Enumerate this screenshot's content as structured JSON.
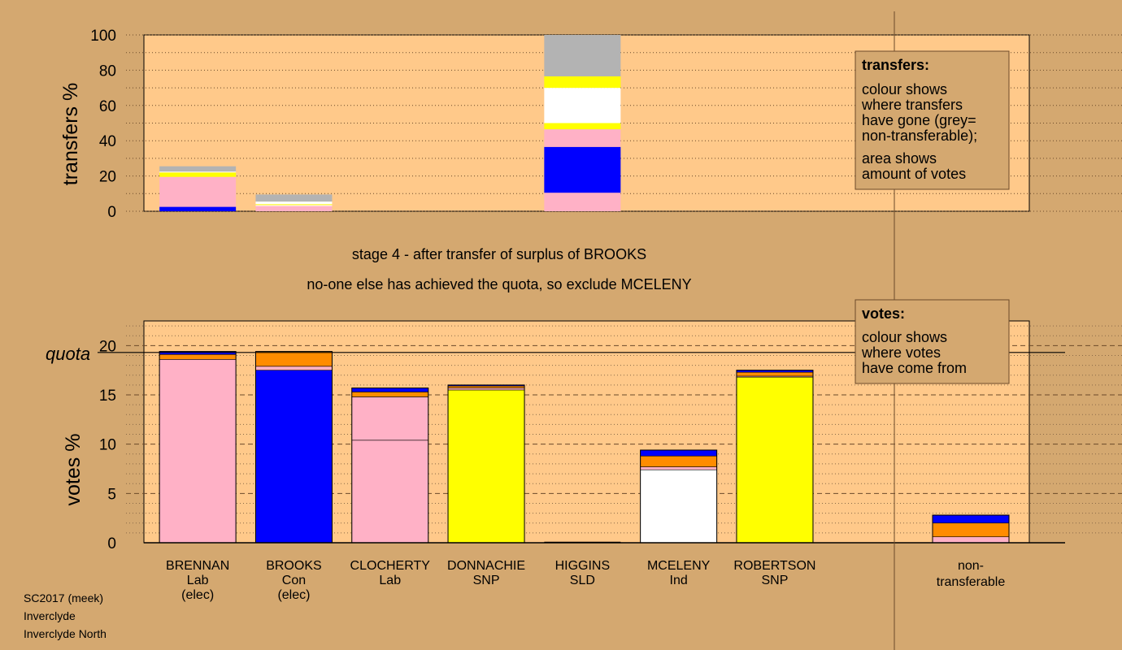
{
  "colors": {
    "background": "#d4a870",
    "plot_bg": "#ffc98a",
    "Lab": "#ffb1c6",
    "Con": "#0000ff",
    "SNP": "#ffff00",
    "Ind": "#ffffff",
    "SLD": "#ff8c00",
    "transfer_from_Con": "#ff8c00",
    "non_transferable": "#b3b3b3"
  },
  "header": {
    "stage_text": "stage 4 - after transfer of surplus of BROOKS",
    "action_text": "no-one else has achieved the quota, so exclude MCELENY"
  },
  "footer": {
    "line1": "SC2017 (meek)",
    "line2": "Inverclyde",
    "line3": "Inverclyde North"
  },
  "legend_transfers": {
    "title": "transfers:",
    "lines": [
      "colour shows",
      "where transfers",
      "have gone (grey=",
      "non-transferable);"
    ],
    "lines2": [
      "area shows",
      "amount of votes"
    ]
  },
  "legend_votes": {
    "title": "votes:",
    "lines": [
      "colour shows",
      "where votes",
      "have come from"
    ]
  },
  "chart_data": [
    {
      "type": "bar",
      "stacked": true,
      "ylabel": "transfers %",
      "ylim": [
        0,
        100
      ],
      "yticks": [
        0,
        20,
        40,
        60,
        80,
        100
      ],
      "grid": "dotted horizontal",
      "categories": [
        "BRENNAN",
        "BROOKS",
        "CLOCHERTY",
        "DONNACHIE",
        "HIGGINS",
        "MCELENY",
        "ROBERTSON"
      ],
      "bars": [
        {
          "candidate": "BRENNAN",
          "segments": [
            {
              "color": "Con",
              "value": 2.5
            },
            {
              "color": "Lab",
              "value": 17
            },
            {
              "color": "SNP",
              "value": 2.5
            },
            {
              "color": "Ind",
              "value": 0.5
            },
            {
              "color": "non_transferable",
              "value": 3
            }
          ]
        },
        {
          "candidate": "BROOKS",
          "segments": [
            {
              "color": "Lab",
              "value": 3
            },
            {
              "color": "Ind",
              "value": 0.5
            },
            {
              "color": "SNP",
              "value": 0.5
            },
            {
              "color": "Ind",
              "value": 1.5
            },
            {
              "color": "non_transferable",
              "value": 4
            }
          ]
        },
        {
          "candidate": "CLOCHERTY",
          "segments": []
        },
        {
          "candidate": "DONNACHIE",
          "segments": []
        },
        {
          "candidate": "HIGGINS",
          "segments": [
            {
              "color": "Lab",
              "value": 10.5
            },
            {
              "color": "Con",
              "value": 26
            },
            {
              "color": "Lab",
              "value": 10
            },
            {
              "color": "SNP",
              "value": 3.5
            },
            {
              "color": "Ind",
              "value": 20
            },
            {
              "color": "SNP",
              "value": 6.5
            },
            {
              "color": "non_transferable",
              "value": 23.5
            }
          ]
        },
        {
          "candidate": "MCELENY",
          "segments": []
        },
        {
          "candidate": "ROBERTSON",
          "segments": []
        }
      ]
    },
    {
      "type": "bar",
      "stacked": true,
      "ylabel": "votes %",
      "ylim": [
        0,
        22.5
      ],
      "yticks": [
        0,
        5,
        10,
        15,
        20
      ],
      "quota": 19.3,
      "quota_label": "quota",
      "categories": [
        {
          "name": "BRENNAN",
          "party": "Lab",
          "note": "(elec)"
        },
        {
          "name": "BROOKS",
          "party": "Con",
          "note": "(elec)"
        },
        {
          "name": "CLOCHERTY",
          "party": "Lab",
          "note": ""
        },
        {
          "name": "DONNACHIE",
          "party": "SNP",
          "note": ""
        },
        {
          "name": "HIGGINS",
          "party": "SLD",
          "note": ""
        },
        {
          "name": "MCELENY",
          "party": "Ind",
          "note": ""
        },
        {
          "name": "ROBERTSON",
          "party": "SNP",
          "note": ""
        }
      ],
      "non_transferable_label": [
        "non-",
        "transferable"
      ],
      "bars": [
        {
          "candidate": "BRENNAN",
          "segments": [
            {
              "color": "Lab",
              "value": 18.6
            },
            {
              "color": "transfer_from_Con",
              "value": 0.5
            },
            {
              "color": "Con",
              "value": 0.3
            }
          ]
        },
        {
          "candidate": "BROOKS",
          "segments": [
            {
              "color": "Con",
              "value": 17.5
            },
            {
              "color": "Lab",
              "value": 0.4
            },
            {
              "color": "transfer_from_Con",
              "value": 1.5
            }
          ]
        },
        {
          "candidate": "CLOCHERTY",
          "segments": [
            {
              "color": "Lab",
              "value": 10.4
            },
            {
              "color": "Lab",
              "value": 4.4
            },
            {
              "color": "transfer_from_Con",
              "value": 0.5
            },
            {
              "color": "Con",
              "value": 0.4
            }
          ]
        },
        {
          "candidate": "DONNACHIE",
          "segments": [
            {
              "color": "SNP",
              "value": 15.5
            },
            {
              "color": "Lab",
              "value": 0.2
            },
            {
              "color": "transfer_from_Con",
              "value": 0.2
            },
            {
              "color": "Con",
              "value": 0.1
            }
          ]
        },
        {
          "candidate": "HIGGINS",
          "segments": []
        },
        {
          "candidate": "MCELENY",
          "segments": [
            {
              "color": "Ind",
              "value": 7.4
            },
            {
              "color": "Lab",
              "value": 0.3
            },
            {
              "color": "transfer_from_Con",
              "value": 1.1
            },
            {
              "color": "Con",
              "value": 0.6
            }
          ]
        },
        {
          "candidate": "ROBERTSON",
          "segments": [
            {
              "color": "SNP",
              "value": 16.8
            },
            {
              "color": "Lab",
              "value": 0.1
            },
            {
              "color": "transfer_from_Con",
              "value": 0.4
            },
            {
              "color": "Con",
              "value": 0.2
            }
          ]
        },
        {
          "candidate": "non-transferable",
          "segments": [
            {
              "color": "Lab",
              "value": 0.6
            },
            {
              "color": "transfer_from_Con",
              "value": 1.4
            },
            {
              "color": "Con",
              "value": 0.8
            }
          ]
        }
      ]
    }
  ]
}
